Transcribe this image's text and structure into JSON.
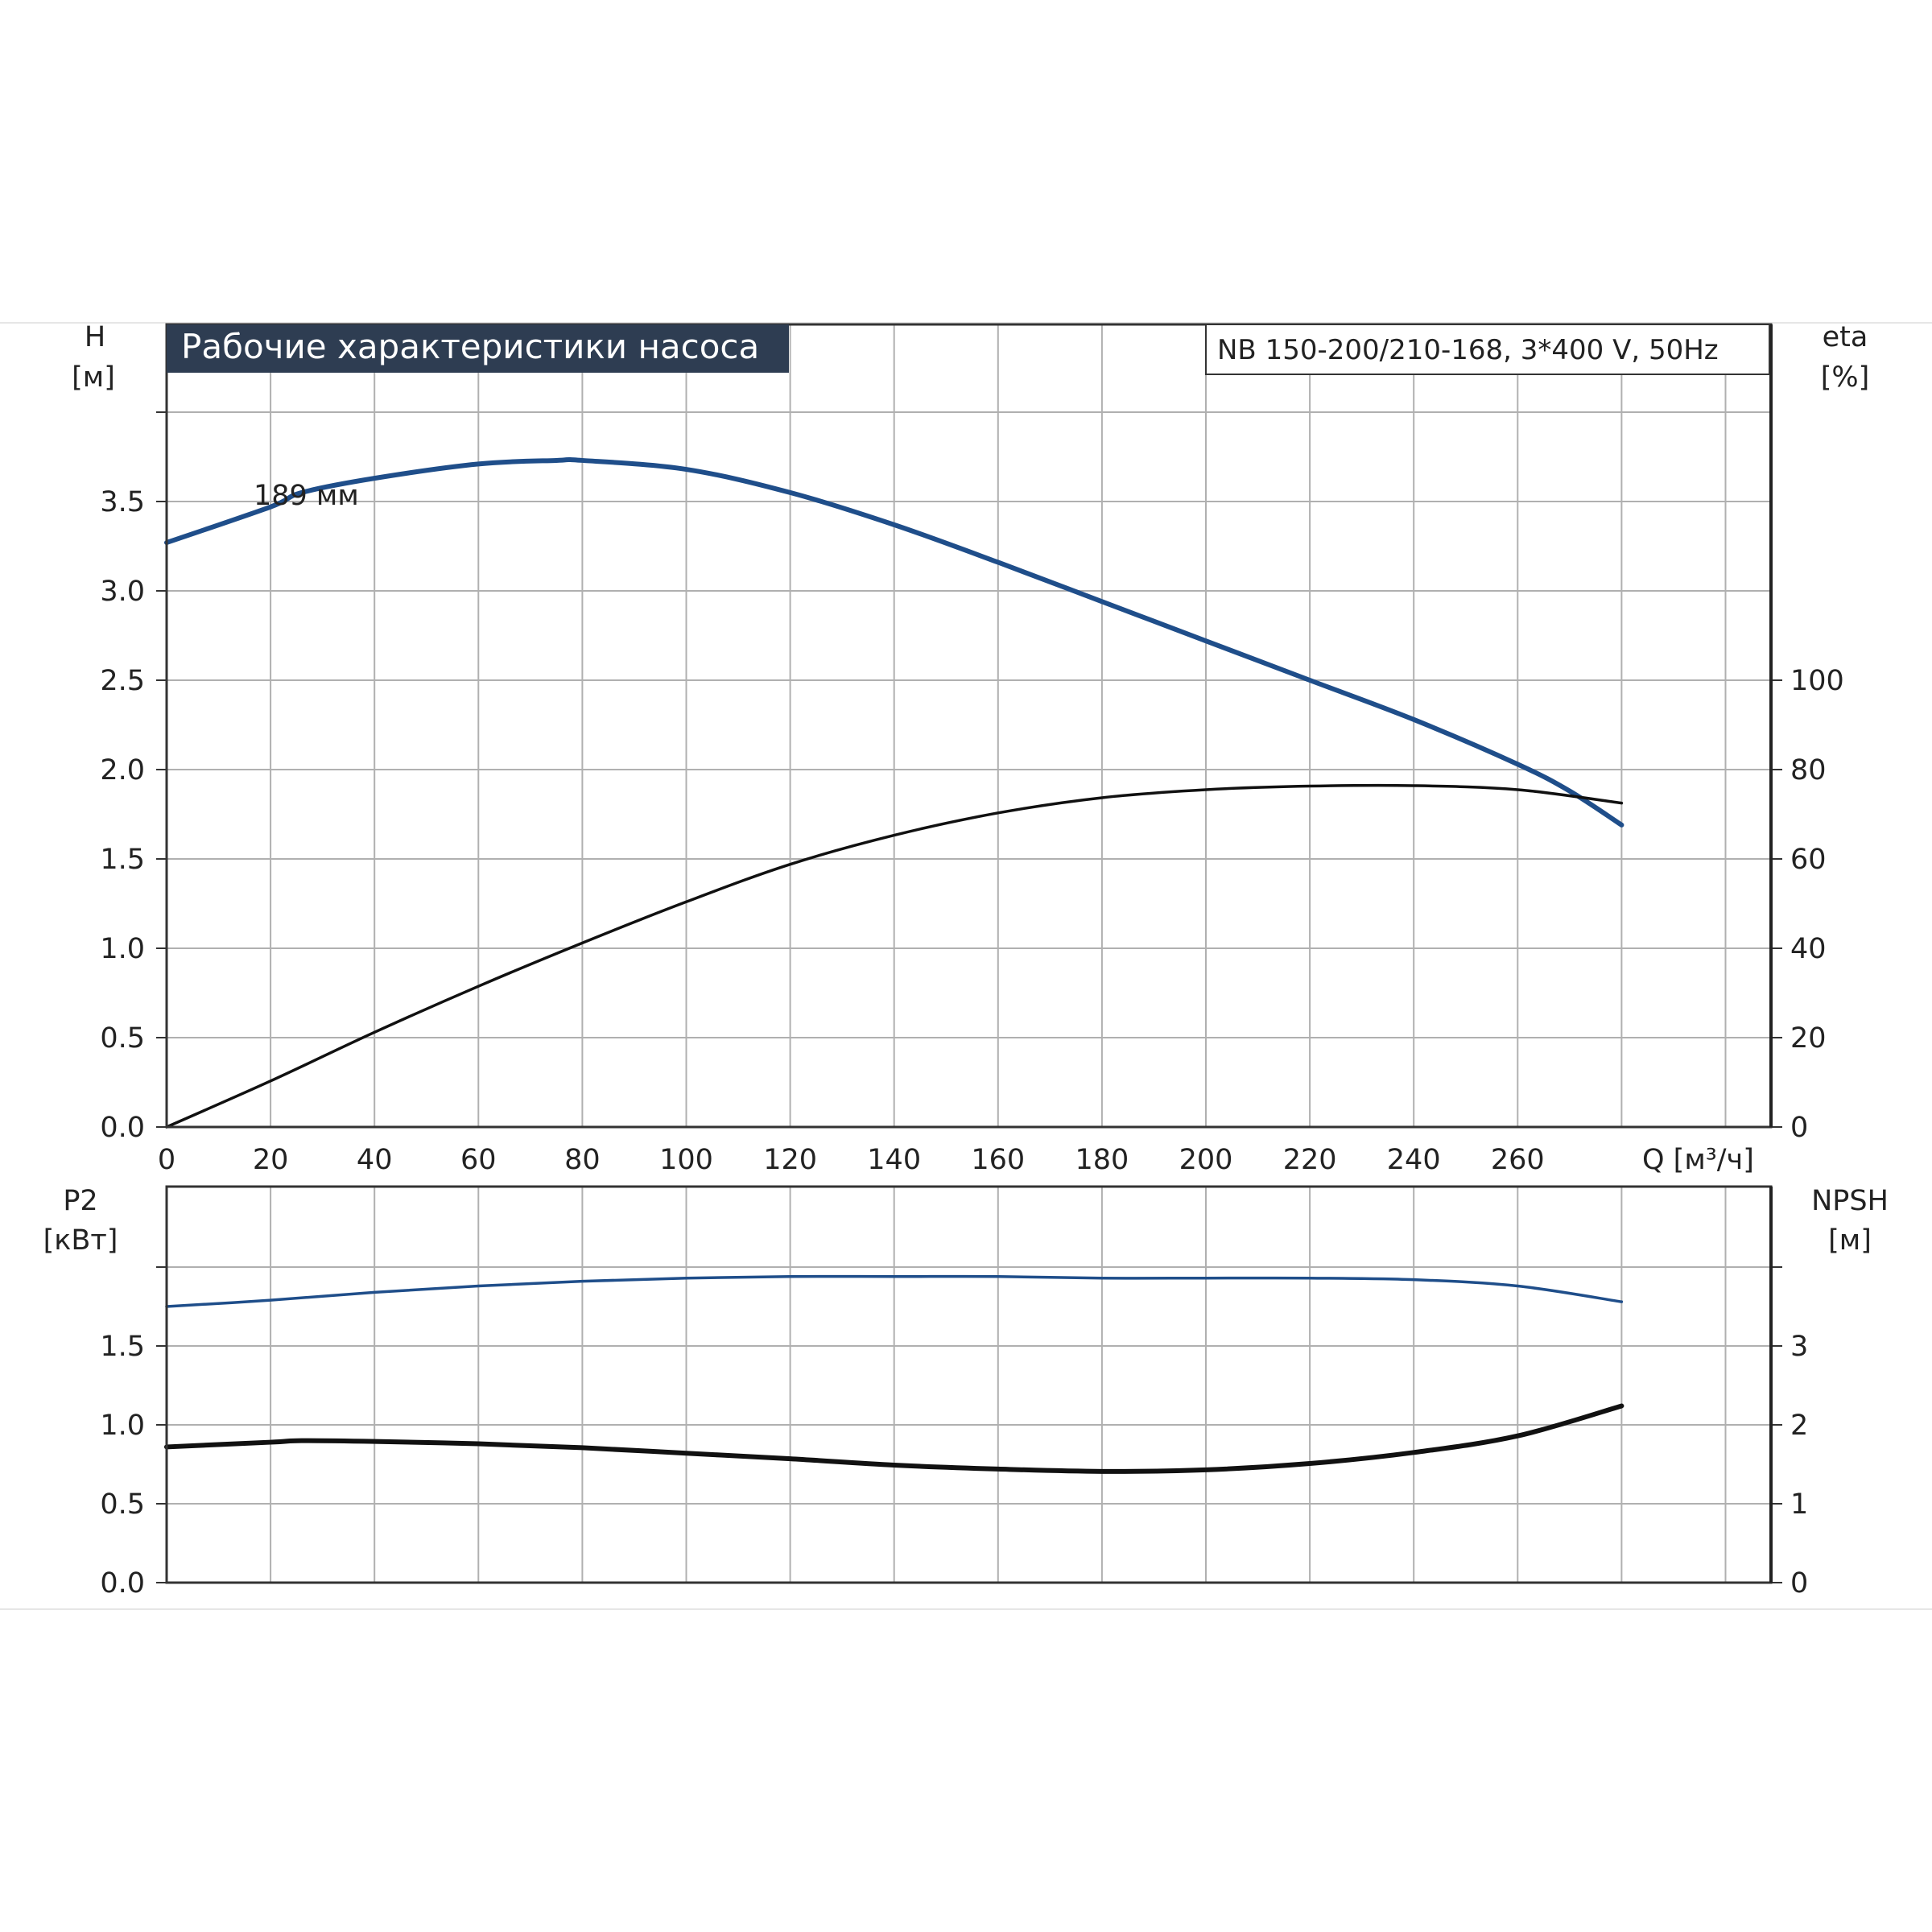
{
  "chart_data": [
    {
      "type": "line",
      "title": "Рабочие характеристики насоса",
      "model_label": "NB 150-200/210-168, 3*400 V, 50Hz",
      "curve_label": "189 мм",
      "xlabel": "Q [м³/ч]",
      "ylabel_left": {
        "name": "H",
        "unit": "[м]"
      },
      "ylabel_right": {
        "name": "eta",
        "unit": "[%]"
      },
      "xlim": [
        0,
        310
      ],
      "x_ticks": [
        "0",
        "20",
        "40",
        "60",
        "80",
        "100",
        "120",
        "140",
        "160",
        "180",
        "200",
        "220",
        "240",
        "260"
      ],
      "ylim_left": [
        0,
        4.0
      ],
      "y_ticks_left": [
        "0.0",
        "0.5",
        "1.0",
        "1.5",
        "2.0",
        "2.5",
        "3.0",
        "3.5"
      ],
      "ylim_right": [
        0,
        160
      ],
      "y_ticks_right": [
        "0",
        "20",
        "40",
        "60",
        "80",
        "100"
      ],
      "grid": true,
      "series": [
        {
          "name": "H",
          "axis": "left",
          "color": "#1f4e8a",
          "x": [
            0,
            20,
            26,
            40,
            60,
            75,
            80,
            100,
            120,
            140,
            160,
            180,
            200,
            220,
            240,
            260,
            270,
            280
          ],
          "y": [
            3.27,
            3.47,
            3.55,
            3.63,
            3.71,
            3.73,
            3.73,
            3.68,
            3.55,
            3.37,
            3.16,
            2.94,
            2.72,
            2.5,
            2.28,
            2.03,
            1.88,
            1.69
          ]
        },
        {
          "name": "eta",
          "axis": "right",
          "color": "#111111",
          "x": [
            0,
            20,
            40,
            60,
            80,
            100,
            120,
            140,
            160,
            180,
            200,
            220,
            240,
            260,
            280
          ],
          "y": [
            0,
            10.3,
            21.2,
            31.5,
            41.2,
            50.4,
            58.8,
            65.3,
            70.3,
            73.7,
            75.5,
            76.3,
            76.4,
            75.5,
            72.5
          ]
        }
      ]
    },
    {
      "type": "line",
      "xlim": [
        0,
        310
      ],
      "ylabel_left": {
        "name": "P2",
        "unit": "[кВт]"
      },
      "ylabel_right": {
        "name": "NPSH",
        "unit": "[м]"
      },
      "ylim_left": [
        0,
        2.0
      ],
      "y_ticks_left": [
        "0.0",
        "0.5",
        "1.0",
        "1.5"
      ],
      "ylim_right": [
        0,
        4
      ],
      "y_ticks_right": [
        "0",
        "1",
        "2",
        "3"
      ],
      "grid": true,
      "series": [
        {
          "name": "P2",
          "axis": "left",
          "color": "#1f4e8a",
          "x": [
            0,
            20,
            40,
            60,
            80,
            100,
            120,
            140,
            160,
            180,
            200,
            220,
            240,
            260,
            280
          ],
          "y": [
            1.75,
            1.79,
            1.84,
            1.88,
            1.91,
            1.93,
            1.94,
            1.94,
            1.94,
            1.93,
            1.93,
            1.93,
            1.92,
            1.88,
            1.78
          ]
        },
        {
          "name": "NPSH",
          "axis": "right",
          "color": "#111111",
          "x": [
            0,
            20,
            26,
            40,
            60,
            80,
            100,
            120,
            140,
            160,
            180,
            200,
            220,
            240,
            260,
            280
          ],
          "y": [
            1.72,
            1.78,
            1.8,
            1.79,
            1.76,
            1.71,
            1.64,
            1.57,
            1.49,
            1.44,
            1.41,
            1.43,
            1.51,
            1.65,
            1.86,
            2.24
          ]
        }
      ]
    }
  ]
}
